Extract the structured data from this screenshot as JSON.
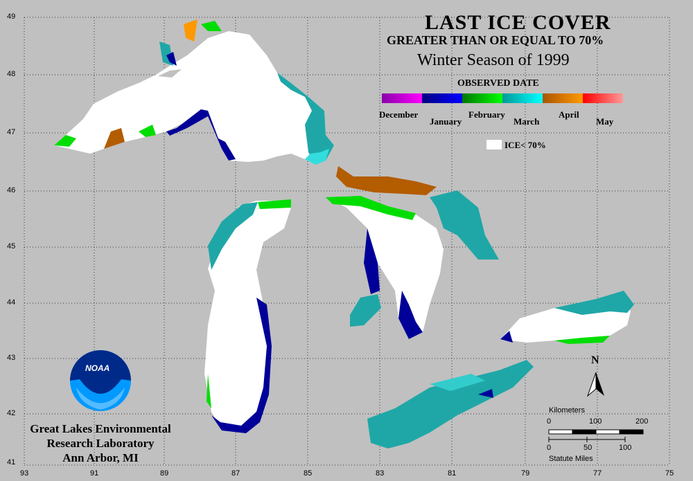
{
  "title": "LAST ICE COVER",
  "subtitle": "GREATER THAN OR EQUAL TO 70%",
  "season": "Winter Season of 1999",
  "legend": {
    "heading": "OBSERVED DATE",
    "months": [
      "December",
      "January",
      "February",
      "March",
      "April",
      "May"
    ],
    "month_colors": [
      [
        "#8800aa",
        "#ff00ff"
      ],
      [
        "#000080",
        "#0000ff"
      ],
      [
        "#007700",
        "#00ff00"
      ],
      [
        "#009999",
        "#00ffff"
      ],
      [
        "#aa5500",
        "#ff9900"
      ],
      [
        "#ff0000",
        "#ff9999"
      ]
    ],
    "white_label": "ICE< 70%"
  },
  "credit": [
    "Great Lakes Environmental",
    "Research Laboratory",
    "Ann Arbor, MI"
  ],
  "logo_text": "NOAA",
  "north_label": "N",
  "scale": {
    "km_title": "Kilometers",
    "km_ticks": [
      "0",
      "100",
      "200"
    ],
    "mi_title": "Statute Miles",
    "mi_ticks": [
      "0",
      "50",
      "100"
    ]
  },
  "lon_labels": [
    "93",
    "91",
    "89",
    "87",
    "85",
    "83",
    "81",
    "79",
    "77",
    "75"
  ],
  "lat_labels": [
    "49",
    "48",
    "47",
    "46",
    "45",
    "44",
    "43",
    "42",
    "41"
  ],
  "colors": {
    "background": "#c0c0c0",
    "ice_white": "#ffffff",
    "march": "#1fa7a7",
    "march_light": "#33cccc",
    "february": "#00dd00",
    "january": "#000099",
    "april": "#b35c00"
  }
}
